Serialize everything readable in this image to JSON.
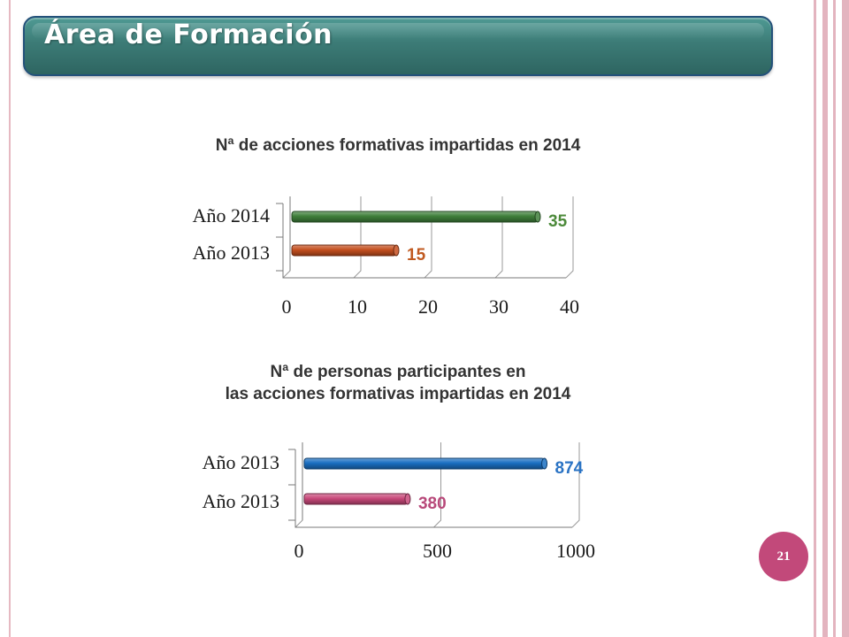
{
  "header": {
    "title": "Área de Formación"
  },
  "page_number": "21",
  "colors": {
    "header": "#3c7b76",
    "badge": "#c2497a"
  },
  "chart_data": [
    {
      "type": "bar",
      "orientation": "horizontal",
      "title": "Nª de acciones formativas impartidas en 2014",
      "subtitle": "",
      "categories": [
        "Año 2014",
        "Año 2013"
      ],
      "values": [
        35,
        15
      ],
      "xlim": [
        0,
        40
      ],
      "xticks": [
        0,
        10,
        20,
        30,
        40
      ],
      "bar_colors": [
        "#3f7f3a",
        "#c44f1f"
      ],
      "label_colors": [
        "#4c8a3a",
        "#c0591f"
      ],
      "grid": true,
      "legend": "none"
    },
    {
      "type": "bar",
      "orientation": "horizontal",
      "title": "Nª de personas participantes en",
      "subtitle": "las acciones formativas impartidas en 2014",
      "categories": [
        "Año 2013",
        "Año 2013"
      ],
      "values": [
        874,
        380
      ],
      "xlim": [
        0,
        1000
      ],
      "xticks": [
        0,
        500,
        1000
      ],
      "bar_colors": [
        "#1a6fc2",
        "#c8497a"
      ],
      "label_colors": [
        "#2a73c4",
        "#b8497a"
      ],
      "grid": true,
      "legend": "none"
    }
  ]
}
